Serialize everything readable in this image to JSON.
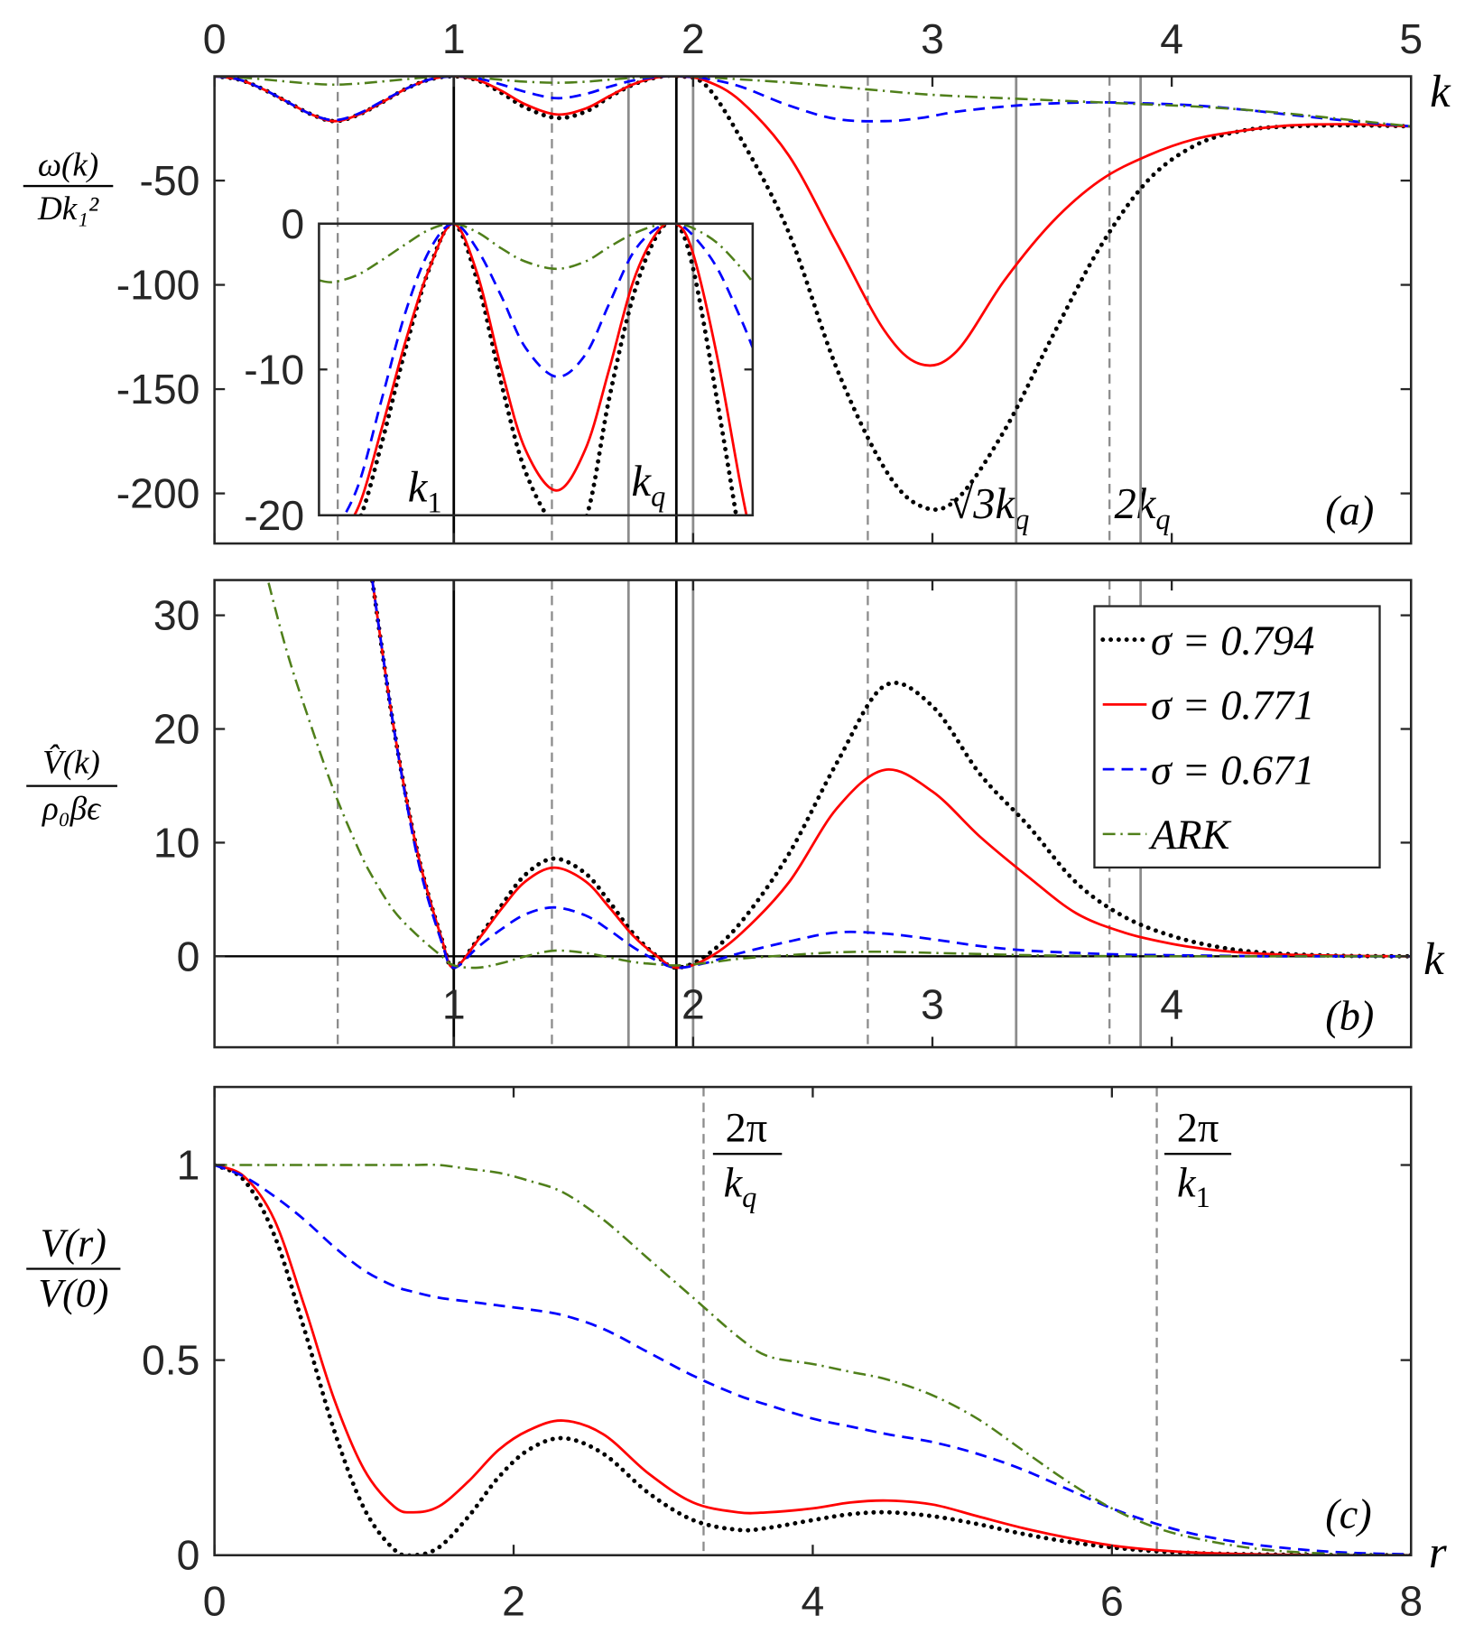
{
  "chart_data": [
    {
      "type": "line",
      "x_label": "k",
      "panel_label": "(a)",
      "y_label": {
        "numerator": "ω(k)",
        "denominator": "Dk₁²"
      },
      "xlim": [
        0,
        5
      ],
      "ylim": [
        -224,
        0
      ],
      "xticks": [
        0,
        1,
        2,
        3,
        4,
        5
      ],
      "xtick_side": "top",
      "yticks": [
        -200,
        -150,
        -100,
        -50
      ],
      "vlines_black": [
        1,
        1.93
      ],
      "vlines_gray": [
        1.73,
        2.0,
        3.35,
        3.87
      ],
      "vlines_dashed": [
        0.515,
        1.41,
        2.73,
        3.74
      ],
      "annotations": [
        {
          "base": "√3k",
          "sub": "q"
        },
        {
          "base": "2k",
          "sub": "q"
        }
      ],
      "x": [
        0,
        0.1,
        0.2,
        0.3,
        0.4,
        0.5,
        0.6,
        0.7,
        0.8,
        0.9,
        1,
        1.1,
        1.2,
        1.3,
        1.43,
        1.55,
        1.65,
        1.75,
        1.85,
        1.93,
        2.05,
        2.2,
        2.4,
        2.6,
        2.8,
        2.95,
        3.1,
        3.3,
        3.5,
        3.7,
        3.9,
        4.1,
        4.3,
        4.5,
        4.75,
        5
      ],
      "series": [
        {
          "color": "#000000",
          "style": "dotted",
          "values": [
            0,
            -1.5,
            -6,
            -12,
            -18,
            -21.5,
            -18.5,
            -12.5,
            -6,
            -1.5,
            0,
            -2,
            -8,
            -15,
            -20,
            -17,
            -10,
            -4,
            -0.5,
            0,
            -4,
            -30,
            -75,
            -140,
            -188,
            -206,
            -203,
            -170,
            -125,
            -82,
            -50,
            -33,
            -26,
            -24,
            -23.5,
            -24
          ]
        },
        {
          "color": "#ff0000",
          "style": "solid",
          "values": [
            0,
            -1.5,
            -6,
            -12,
            -18,
            -21.5,
            -18.5,
            -12.5,
            -6,
            -1.5,
            0,
            -1.8,
            -7,
            -13.5,
            -18.3,
            -15.5,
            -9.5,
            -3.8,
            -0.5,
            0,
            -2,
            -12,
            -38,
            -80,
            -122,
            -138,
            -132,
            -98,
            -70,
            -50,
            -38,
            -30,
            -26,
            -23.5,
            -23,
            -24
          ]
        },
        {
          "color": "#0000ff",
          "style": "dashed",
          "values": [
            0,
            -1.5,
            -6,
            -12,
            -18,
            -21,
            -18,
            -12,
            -6,
            -1.5,
            0,
            -1,
            -4,
            -7.5,
            -10.5,
            -8.5,
            -5,
            -2,
            -0.3,
            0,
            -1,
            -5,
            -14,
            -20.5,
            -21.5,
            -20,
            -17,
            -14.5,
            -13,
            -12.5,
            -13,
            -14,
            -16,
            -18.5,
            -21.5,
            -24
          ]
        },
        {
          "color": "#4f7f1a",
          "style": "dashdot",
          "values": [
            0,
            -0.5,
            -1.4,
            -2.5,
            -3.5,
            -4,
            -3.5,
            -2.5,
            -1.4,
            -0.4,
            0,
            -0.6,
            -1.7,
            -2.6,
            -3.1,
            -2.6,
            -1.6,
            -0.7,
            -0.1,
            0,
            -0.4,
            -1.5,
            -3,
            -5,
            -7,
            -8.5,
            -9.5,
            -10.5,
            -11.5,
            -12.5,
            -13.5,
            -14.5,
            -16,
            -18,
            -21,
            -24
          ]
        }
      ]
    },
    {
      "type": "line",
      "xlim": [
        0.437,
        2.25
      ],
      "ylim": [
        -20,
        0
      ],
      "yticks": [
        -20,
        -10,
        0
      ],
      "annotations": [
        {
          "base": "k",
          "sub": "1"
        },
        {
          "base": "k",
          "sub": "q"
        }
      ],
      "x": [
        0.44,
        0.5,
        0.6,
        0.7,
        0.8,
        0.9,
        1,
        1.1,
        1.2,
        1.3,
        1.43,
        1.55,
        1.65,
        1.75,
        1.85,
        1.93,
        2,
        2.1,
        2.2,
        2.25
      ],
      "series": [
        {
          "color": "#000000",
          "style": "dotted",
          "values": [
            -21,
            -21.6,
            -20.5,
            -15,
            -8.5,
            -3,
            0,
            -4,
            -11,
            -17,
            -20.8,
            -20.3,
            -12,
            -5,
            -0.8,
            0,
            -3,
            -12,
            -22,
            -28
          ]
        },
        {
          "color": "#ff0000",
          "style": "solid",
          "values": [
            -21,
            -21.5,
            -19.5,
            -14,
            -8,
            -3,
            0,
            -3.5,
            -10,
            -15.5,
            -18.3,
            -15.5,
            -10,
            -4,
            -0.6,
            0,
            -2,
            -9,
            -18,
            -22
          ]
        },
        {
          "color": "#0000ff",
          "style": "dashed",
          "values": [
            -21,
            -21,
            -18,
            -12,
            -6,
            -1.8,
            0,
            -1.8,
            -5,
            -8.5,
            -10.5,
            -9,
            -5.5,
            -2,
            -0.3,
            0,
            -0.8,
            -3,
            -6.5,
            -8.5
          ]
        },
        {
          "color": "#4f7f1a",
          "style": "dashdot",
          "values": [
            -3.9,
            -4,
            -3.5,
            -2.5,
            -1.4,
            -0.4,
            0,
            -0.6,
            -1.7,
            -2.6,
            -3.1,
            -2.6,
            -1.6,
            -0.7,
            -0.1,
            0,
            -0.3,
            -1.3,
            -3,
            -4
          ]
        }
      ]
    },
    {
      "type": "line",
      "x_label": "k",
      "panel_label": "(b)",
      "y_label": {
        "numerator": "V̂(k)",
        "denominator": "ρ₀βϵ"
      },
      "xlim": [
        0,
        5
      ],
      "ylim": [
        -8,
        33.1
      ],
      "xticks": [
        1,
        2,
        3,
        4
      ],
      "xtick_side": "zero",
      "yticks": [
        0,
        10,
        20,
        30
      ],
      "zero_line": true,
      "legend": "upper right",
      "vlines_black": [
        1,
        1.93
      ],
      "vlines_gray": [
        1.73,
        2.0,
        3.35,
        3.87
      ],
      "vlines_dashed": [
        0.515,
        1.41,
        2.73,
        3.74
      ],
      "x": [
        0.2,
        0.3,
        0.4,
        0.5,
        0.6,
        0.66,
        0.75,
        0.85,
        0.95,
        1,
        1.1,
        1.2,
        1.3,
        1.42,
        1.55,
        1.65,
        1.75,
        1.85,
        1.93,
        2.05,
        2.2,
        2.4,
        2.6,
        2.8,
        3,
        3.2,
        3.4,
        3.6,
        3.8,
        4,
        4.2,
        4.4,
        4.7,
        5
      ],
      "series": [
        {
          "name": "σ = 0.794",
          "color": "#000000",
          "style": "dotted",
          "values": [
            null,
            null,
            null,
            null,
            null,
            33,
            20,
            9,
            1.5,
            -1,
            1.5,
            4.5,
            7.2,
            8.6,
            7.3,
            4.8,
            2,
            0,
            -1,
            0,
            3,
            9,
            17,
            23.8,
            22,
            16,
            11.5,
            6.5,
            3.5,
            1.8,
            0.8,
            0.3,
            0.05,
            0
          ]
        },
        {
          "name": "σ = 0.771",
          "color": "#ff0000",
          "style": "solid",
          "values": [
            null,
            null,
            null,
            null,
            null,
            33,
            20,
            9,
            1.5,
            -1,
            1.4,
            4.2,
            6.6,
            7.8,
            6.6,
            4.3,
            1.8,
            0,
            -1,
            -0.3,
            2,
            6.5,
            13,
            16.4,
            14.5,
            10.5,
            7,
            3.8,
            2.1,
            1.1,
            0.5,
            0.2,
            0.05,
            0
          ]
        },
        {
          "name": "σ = 0.671",
          "color": "#0000ff",
          "style": "dashed",
          "values": [
            null,
            null,
            null,
            null,
            null,
            33,
            20,
            8.5,
            1.2,
            -1,
            0.8,
            2.4,
            3.7,
            4.3,
            3.6,
            2.3,
            0.8,
            -0.4,
            -1,
            -0.6,
            0.3,
            1.3,
            2.1,
            2,
            1.5,
            0.9,
            0.5,
            0.3,
            0.15,
            0.1,
            0.05,
            0,
            0,
            0
          ]
        },
        {
          "name": "ARK",
          "color": "#4f7f1a",
          "style": "dashdot",
          "values": [
            35,
            27,
            20.5,
            14.5,
            9.5,
            7,
            4,
            1.8,
            0,
            -0.8,
            -1,
            -0.6,
            0,
            0.5,
            0.3,
            -0.1,
            -0.5,
            -0.7,
            -0.8,
            -0.6,
            -0.2,
            0.1,
            0.35,
            0.4,
            0.3,
            0.2,
            0.1,
            0.05,
            0,
            0,
            0,
            0,
            0,
            0
          ]
        }
      ]
    },
    {
      "type": "line",
      "x_label": "r",
      "panel_label": "(c)",
      "y_label": {
        "numerator": "V(r)",
        "denominator": "V(0)"
      },
      "xlim": [
        0,
        8
      ],
      "ylim": [
        0,
        1.2
      ],
      "xticks": [
        0,
        2,
        4,
        6,
        8
      ],
      "xtick_side": "bottom",
      "yticks": [
        0,
        0.5,
        1
      ],
      "vlines_dashed": [
        3.27,
        6.3
      ],
      "annotations": [
        {
          "numerator": "2π",
          "base": "k",
          "sub": "q"
        },
        {
          "numerator": "2π",
          "base": "k",
          "sub": "1"
        }
      ],
      "x": [
        0,
        0.2,
        0.4,
        0.6,
        0.8,
        1,
        1.2,
        1.33,
        1.5,
        1.7,
        1.9,
        2.1,
        2.33,
        2.6,
        2.9,
        3.2,
        3.5,
        3.7,
        4,
        4.25,
        4.5,
        4.8,
        5.1,
        5.4,
        5.7,
        6,
        6.3,
        6.6,
        7,
        7.5,
        8
      ],
      "series": [
        {
          "color": "#000000",
          "style": "dotted",
          "values": [
            1,
            0.96,
            0.82,
            0.58,
            0.32,
            0.12,
            0.015,
            0,
            0.02,
            0.1,
            0.2,
            0.27,
            0.3,
            0.26,
            0.16,
            0.09,
            0.065,
            0.07,
            0.09,
            0.105,
            0.11,
            0.1,
            0.08,
            0.055,
            0.035,
            0.02,
            0.01,
            0.005,
            0.002,
            0,
            0
          ]
        },
        {
          "color": "#ff0000",
          "style": "solid",
          "values": [
            1,
            0.97,
            0.86,
            0.64,
            0.4,
            0.22,
            0.125,
            0.11,
            0.125,
            0.19,
            0.27,
            0.32,
            0.345,
            0.31,
            0.21,
            0.135,
            0.11,
            0.11,
            0.12,
            0.135,
            0.14,
            0.13,
            0.1,
            0.07,
            0.045,
            0.025,
            0.013,
            0.006,
            0.002,
            0,
            0
          ]
        },
        {
          "color": "#0000ff",
          "style": "dashed",
          "values": [
            1,
            0.97,
            0.92,
            0.86,
            0.79,
            0.73,
            0.69,
            0.675,
            0.66,
            0.65,
            0.64,
            0.63,
            0.615,
            0.58,
            0.52,
            0.46,
            0.41,
            0.385,
            0.35,
            0.33,
            0.31,
            0.29,
            0.26,
            0.22,
            0.17,
            0.12,
            0.08,
            0.05,
            0.025,
            0.008,
            0.002
          ]
        },
        {
          "color": "#4f7f1a",
          "style": "dashdot",
          "values": [
            1,
            1,
            1,
            1,
            1,
            1,
            1,
            1,
            1,
            0.99,
            0.98,
            0.96,
            0.93,
            0.86,
            0.76,
            0.66,
            0.56,
            0.51,
            0.49,
            0.47,
            0.45,
            0.41,
            0.35,
            0.27,
            0.19,
            0.12,
            0.07,
            0.04,
            0.015,
            0.003,
            0
          ]
        }
      ]
    }
  ]
}
